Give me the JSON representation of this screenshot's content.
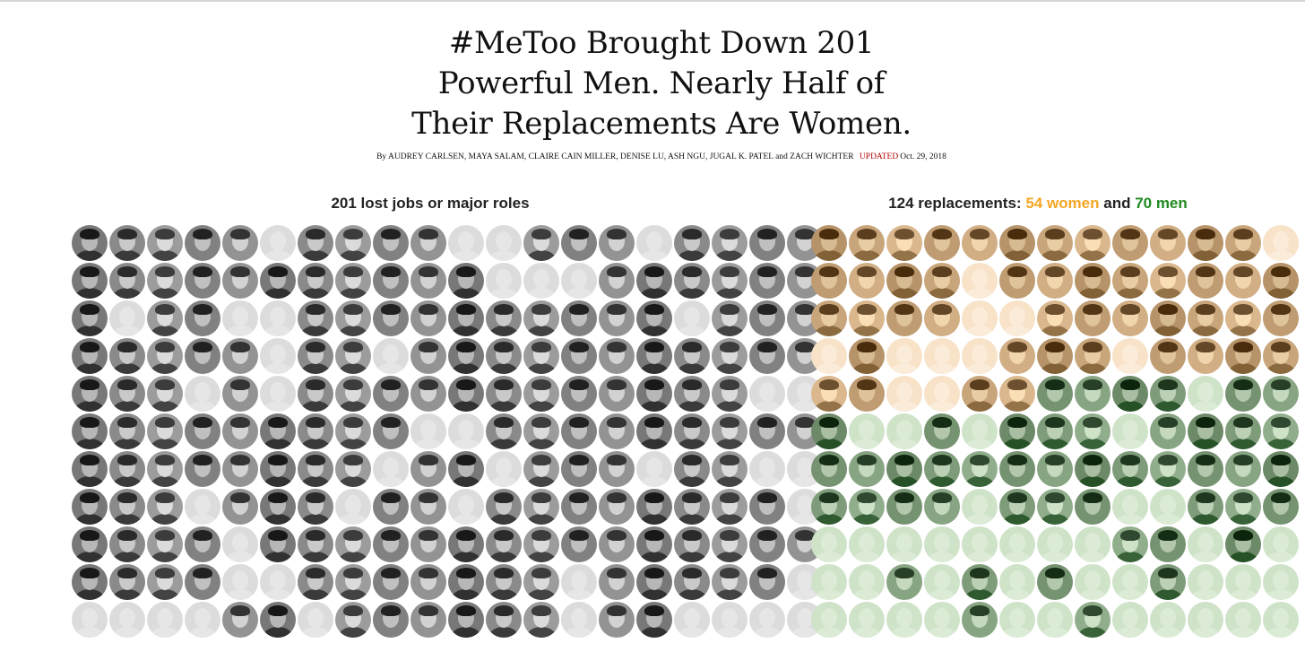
{
  "headline": {
    "line1": "#MeToo Brought Down 201",
    "line2": "Powerful Men. Nearly Half of",
    "line3": "Their Replacements Are Women."
  },
  "byline": {
    "authors": "By AUDREY CARLSEN, MAYA SALAM, CLAIRE CAIN MILLER, DENISE LU, ASH NGU, JUGAL K. PATEL and ZACH WICHTER",
    "updated_label": "UPDATED",
    "date": "Oct. 29, 2018"
  },
  "left_section": {
    "title": "201 lost jobs or major roles",
    "total": 201,
    "rows": [
      "XXXXX.XXXX..XXX.XXXX",
      "XXXXXXXXXXX...XXXXXX",
      "X.XX..XXXXXXXXXX.XXX",
      "XXXXX.XX.XXXXXXXXXXX",
      "XXX.X.XXXXXXXXXXXX..",
      "XXXXXXXXX..XXXXXXXXX",
      "XXXXXXXX.XX.XXX.XX..",
      "XXX.XXX.XX.XXXXXXXX.",
      "XXXX.XXXXXXXXXXXXXXX",
      "XXXX..XXXXXXX.XXXXX.",
      "....XX.XXXXXX.XX...."
    ]
  },
  "right_section": {
    "title_prefix": "124 replacements: ",
    "women_label": "54 women",
    "conjunction": " and ",
    "men_label": "70 men",
    "women_count": 54,
    "men_count": 70,
    "rows": [
      "WWWWWWWWWWWW.",
      "WWWW.WWWWWWWW",
      "WWWW..WWWWWWW",
      ".W...WWW.WWWW",
      "WW..WWMMMM.MM",
      "M..M.MMM.MMMM",
      "MMMMMMMMMMMMM",
      "MMMM.MMM..MMM",
      "........MM.M.",
      "..M.M.M..M...",
      "....M..M....."
    ]
  },
  "colors": {
    "men_lost": "#3a3a3a",
    "empty_left": "#dcdcdc",
    "women_photo": "#8a6a3e",
    "women_empty": "#f8e2c8",
    "men_photo": "#2f5a2f",
    "men_empty": "#cfe3c9",
    "women_text": "#f5a623",
    "men_text": "#1f8a1f"
  }
}
